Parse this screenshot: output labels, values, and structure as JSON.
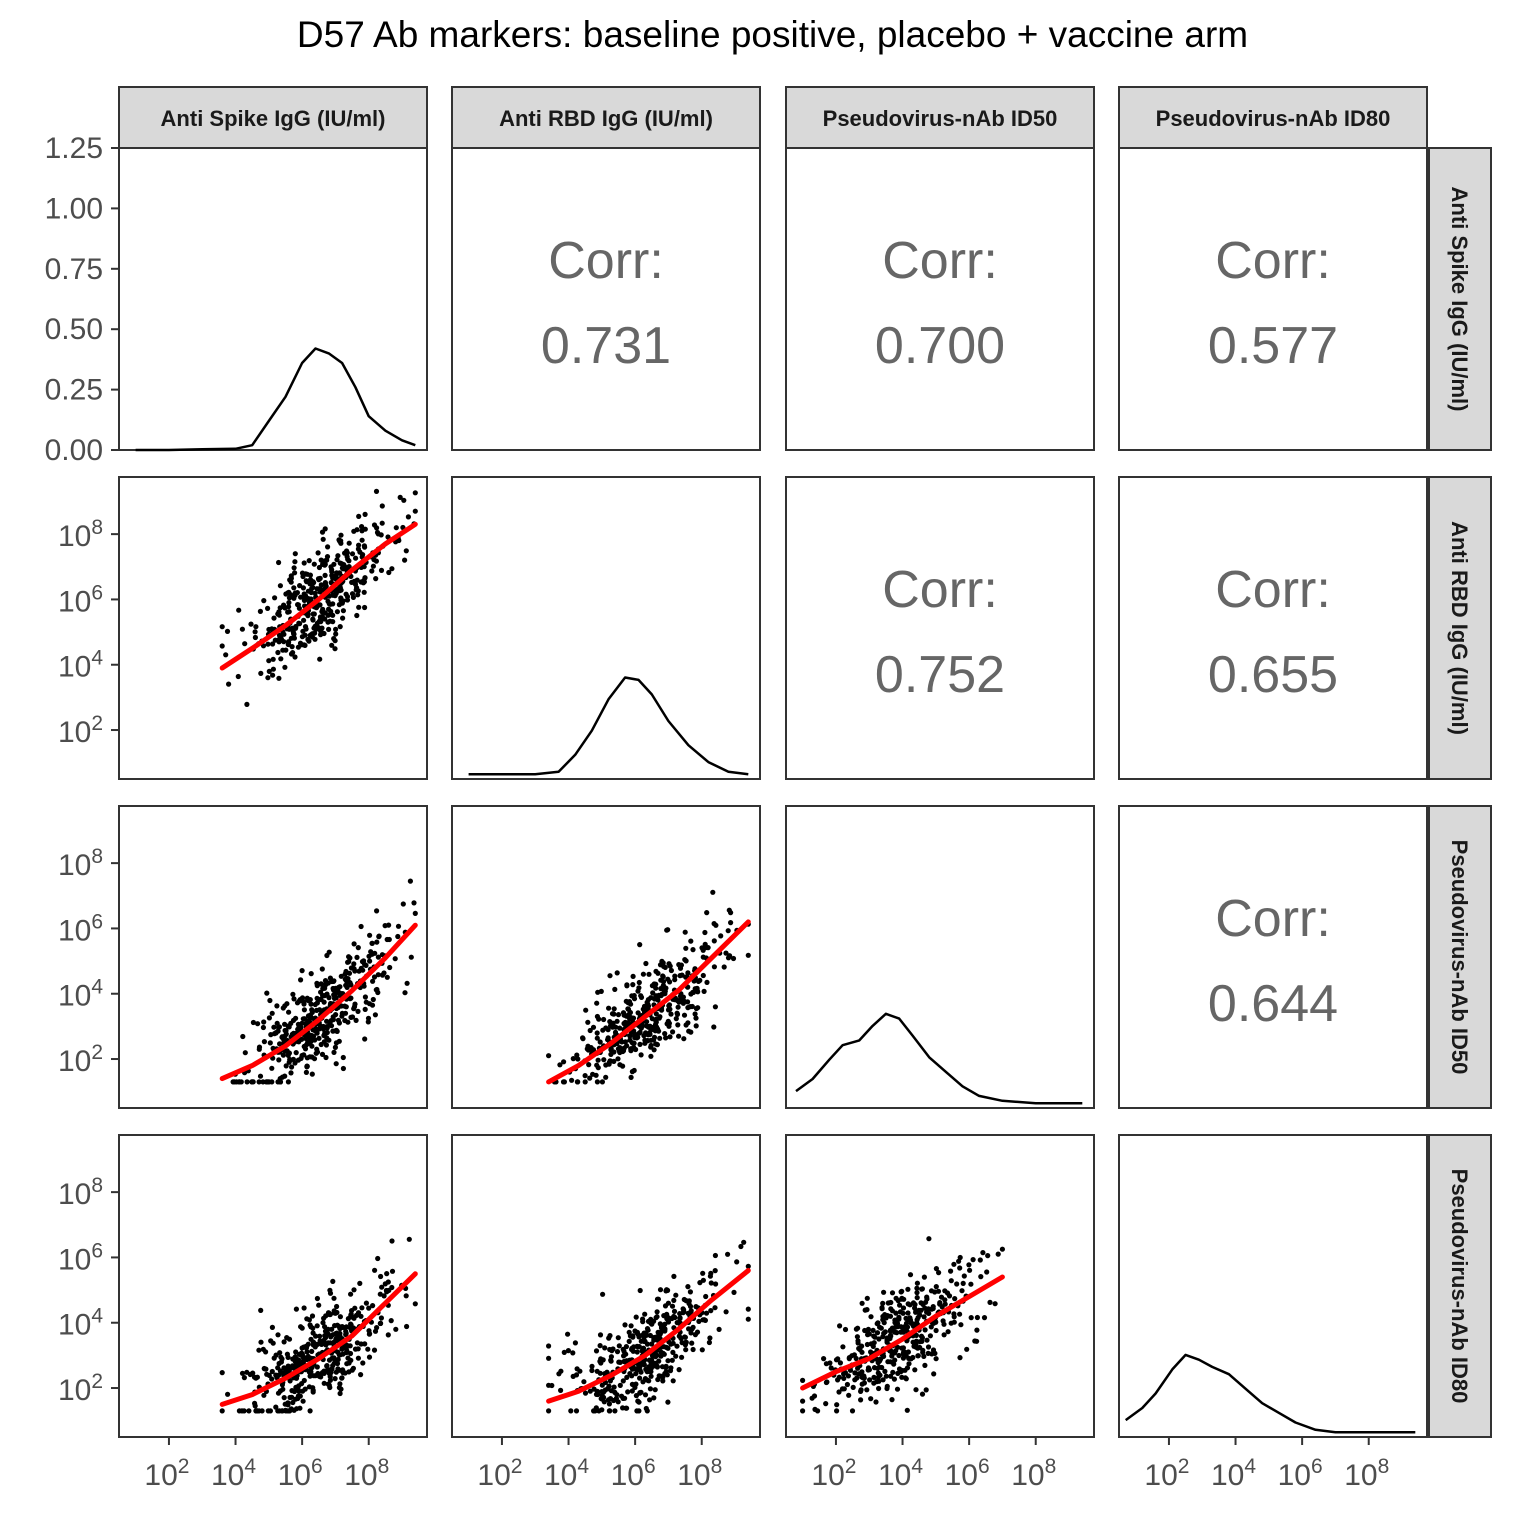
{
  "chart_data": {
    "type": "scatter",
    "title": "D57 Ab markers: baseline positive, placebo + vaccine arm",
    "variables": [
      "Anti Spike IgG (IU/ml)",
      "Anti RBD IgG (IU/ml)",
      "Pseudovirus-nAb ID50",
      "Pseudovirus-nAb ID80"
    ],
    "axis_scale": "log10",
    "axis_range_log10": [
      0.5,
      9.75
    ],
    "tick_labels": [
      "10^2",
      "10^4",
      "10^6",
      "10^8"
    ],
    "tick_log10": [
      2,
      4,
      6,
      8
    ],
    "density_axis": {
      "range": [
        0,
        1.25
      ],
      "ticks": [
        "0.00",
        "0.25",
        "0.50",
        "0.75",
        "1.00",
        "1.25"
      ],
      "tick_values": [
        0,
        0.25,
        0.5,
        0.75,
        1.0,
        1.25
      ]
    },
    "corr_label": "Corr:",
    "correlations": [
      {
        "row": 0,
        "col": 1,
        "value": "0.731"
      },
      {
        "row": 0,
        "col": 2,
        "value": "0.700"
      },
      {
        "row": 0,
        "col": 3,
        "value": "0.577"
      },
      {
        "row": 1,
        "col": 2,
        "value": "0.752"
      },
      {
        "row": 1,
        "col": 3,
        "value": "0.655"
      },
      {
        "row": 2,
        "col": 3,
        "value": "0.644"
      }
    ],
    "densities": [
      {
        "var": 0,
        "points": [
          [
            1,
            0
          ],
          [
            2,
            0
          ],
          [
            3,
            0.003
          ],
          [
            4,
            0.005
          ],
          [
            4.5,
            0.02
          ],
          [
            5,
            0.12
          ],
          [
            5.5,
            0.22
          ],
          [
            6,
            0.36
          ],
          [
            6.4,
            0.42
          ],
          [
            6.8,
            0.4
          ],
          [
            7.2,
            0.36
          ],
          [
            7.6,
            0.26
          ],
          [
            8,
            0.14
          ],
          [
            8.5,
            0.08
          ],
          [
            9,
            0.04
          ],
          [
            9.4,
            0.02
          ]
        ]
      },
      {
        "var": 1,
        "points": [
          [
            1,
            0.02
          ],
          [
            2,
            0.02
          ],
          [
            3,
            0.02
          ],
          [
            3.7,
            0.03
          ],
          [
            4.2,
            0.1
          ],
          [
            4.7,
            0.2
          ],
          [
            5.2,
            0.33
          ],
          [
            5.7,
            0.42
          ],
          [
            6.1,
            0.41
          ],
          [
            6.5,
            0.35
          ],
          [
            7,
            0.24
          ],
          [
            7.6,
            0.14
          ],
          [
            8.2,
            0.07
          ],
          [
            8.8,
            0.03
          ],
          [
            9.4,
            0.02
          ]
        ]
      },
      {
        "var": 2,
        "points": [
          [
            0.8,
            0.07
          ],
          [
            1.3,
            0.12
          ],
          [
            1.8,
            0.2
          ],
          [
            2.2,
            0.26
          ],
          [
            2.7,
            0.28
          ],
          [
            3.1,
            0.34
          ],
          [
            3.5,
            0.39
          ],
          [
            3.9,
            0.37
          ],
          [
            4.3,
            0.3
          ],
          [
            4.8,
            0.21
          ],
          [
            5.3,
            0.15
          ],
          [
            5.8,
            0.09
          ],
          [
            6.3,
            0.05
          ],
          [
            7,
            0.03
          ],
          [
            8,
            0.02
          ],
          [
            9.4,
            0.02
          ]
        ]
      },
      {
        "var": 3,
        "points": [
          [
            0.7,
            0.07
          ],
          [
            1.2,
            0.12
          ],
          [
            1.6,
            0.18
          ],
          [
            2.1,
            0.28
          ],
          [
            2.5,
            0.34
          ],
          [
            2.9,
            0.32
          ],
          [
            3.3,
            0.29
          ],
          [
            3.8,
            0.26
          ],
          [
            4.3,
            0.2
          ],
          [
            4.8,
            0.14
          ],
          [
            5.3,
            0.1
          ],
          [
            5.8,
            0.06
          ],
          [
            6.4,
            0.03
          ],
          [
            7,
            0.02
          ],
          [
            8,
            0.02
          ],
          [
            9.4,
            0.02
          ]
        ]
      }
    ],
    "fits": [
      {
        "row": 1,
        "col": 0,
        "points": [
          [
            3.6,
            3.9
          ],
          [
            4.5,
            4.5
          ],
          [
            5.5,
            5.2
          ],
          [
            6.5,
            6.0
          ],
          [
            7.5,
            6.9
          ],
          [
            8.5,
            7.7
          ],
          [
            9.4,
            8.3
          ]
        ]
      },
      {
        "row": 2,
        "col": 0,
        "points": [
          [
            3.6,
            1.4
          ],
          [
            4.5,
            1.8
          ],
          [
            5.5,
            2.4
          ],
          [
            6.5,
            3.2
          ],
          [
            7.5,
            4.1
          ],
          [
            8.5,
            5.1
          ],
          [
            9.4,
            6.1
          ]
        ]
      },
      {
        "row": 2,
        "col": 1,
        "points": [
          [
            3.4,
            1.3
          ],
          [
            4.3,
            1.8
          ],
          [
            5.3,
            2.5
          ],
          [
            6.3,
            3.3
          ],
          [
            7.3,
            4.1
          ],
          [
            8.3,
            5.1
          ],
          [
            9.4,
            6.2
          ]
        ]
      },
      {
        "row": 3,
        "col": 0,
        "points": [
          [
            3.6,
            1.5
          ],
          [
            4.5,
            1.8
          ],
          [
            5.5,
            2.3
          ],
          [
            6.5,
            2.9
          ],
          [
            7.5,
            3.6
          ],
          [
            8.5,
            4.6
          ],
          [
            9.4,
            5.5
          ]
        ]
      },
      {
        "row": 3,
        "col": 1,
        "points": [
          [
            3.4,
            1.6
          ],
          [
            4.3,
            1.9
          ],
          [
            5.3,
            2.4
          ],
          [
            6.3,
            3.0
          ],
          [
            7.3,
            3.8
          ],
          [
            8.3,
            4.7
          ],
          [
            9.4,
            5.6
          ]
        ]
      },
      {
        "row": 3,
        "col": 2,
        "points": [
          [
            1.0,
            2.0
          ],
          [
            2.0,
            2.5
          ],
          [
            3.0,
            2.9
          ],
          [
            4.0,
            3.5
          ],
          [
            5.0,
            4.2
          ],
          [
            6.0,
            4.8
          ],
          [
            7.0,
            5.4
          ]
        ]
      }
    ],
    "grid": false,
    "legend": "none"
  }
}
